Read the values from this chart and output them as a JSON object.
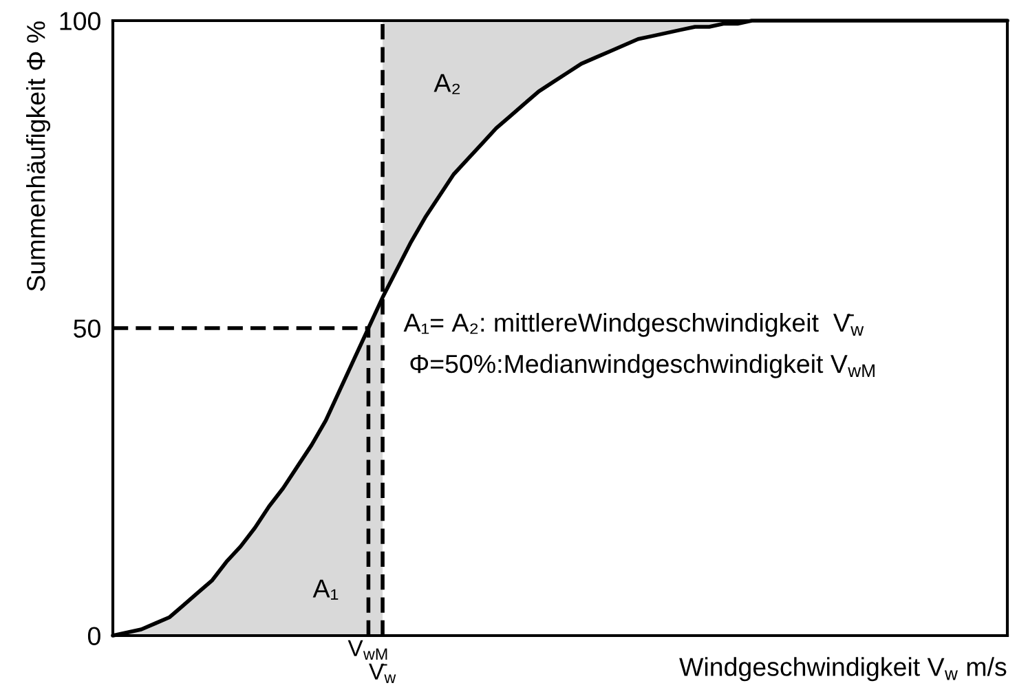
{
  "chart_data": {
    "type": "line",
    "xlabel": "Windgeschwindigkeit V$_{w}$ m/s",
    "ylabel": "Summenhäufigkeit Φ %",
    "categories": [
      null,
      null,
      null,
      null,
      null,
      null,
      null,
      null,
      null,
      null,
      null,
      null,
      null,
      null,
      null,
      null,
      null,
      null,
      "V$_{wM}$",
      "V̄$_{w}$",
      null,
      null,
      null,
      null,
      null,
      null,
      null,
      null,
      null,
      null,
      null,
      null,
      null,
      null,
      null,
      null,
      null,
      null,
      null,
      null,
      null,
      null,
      null,
      null,
      null,
      null,
      null,
      null,
      null,
      null,
      null,
      null,
      null,
      null,
      null,
      null,
      null,
      null,
      null,
      null,
      null,
      null,
      null,
      null
    ],
    "ylim": [
      0,
      100
    ],
    "yticks": [
      0,
      50,
      100
    ],
    "series": [
      {
        "name": "A₁",
        "type": "area",
        "color": "#d9d9d9",
        "values": [
          0,
          0.5,
          1,
          2,
          3,
          5,
          7,
          9,
          12,
          14.5,
          17.5,
          21,
          24,
          27.5,
          31,
          35,
          40,
          45,
          50,
          55,
          null,
          null,
          null,
          null,
          null,
          null,
          null,
          null,
          null,
          null,
          null,
          null,
          null,
          null,
          null,
          null,
          null,
          null,
          null,
          null,
          null,
          null,
          null,
          null,
          null,
          null,
          null,
          null,
          null,
          null,
          null,
          null,
          null,
          null,
          null,
          null,
          null,
          null,
          null,
          null,
          null,
          null,
          null,
          null
        ]
      },
      {
        "color": "#000000",
        "values": [
          0,
          0.5,
          1,
          2,
          3,
          5,
          7,
          9,
          12,
          14.5,
          17.5,
          21,
          24,
          27.5,
          31,
          35,
          40,
          45,
          50,
          55,
          59.5,
          64,
          68,
          71.5,
          75,
          77.5,
          80,
          82.5,
          84.5,
          86.5,
          88.5,
          90,
          91.5,
          93,
          94,
          95,
          96,
          97,
          97.5,
          98,
          98.5,
          99,
          99,
          99.5,
          99.5,
          100,
          100,
          100,
          100,
          100,
          100,
          100,
          100,
          100,
          100,
          100,
          100,
          100,
          100,
          100,
          100,
          100,
          100,
          100
        ],
        "lower": [
          null,
          null,
          null,
          null,
          null,
          null,
          null,
          null,
          null,
          null,
          null,
          null,
          null,
          null,
          null,
          null,
          null,
          null,
          null,
          55,
          59.5,
          64,
          68,
          71.5,
          75,
          77.5,
          80,
          82.5,
          84.5,
          86.5,
          88.5,
          90,
          91.5,
          93,
          94,
          95,
          96,
          97,
          97.5,
          98,
          98.5,
          99,
          99,
          99.5,
          99.5,
          100,
          null,
          null,
          null,
          null,
          null,
          null,
          null,
          null,
          null,
          null,
          null,
          null,
          null,
          null,
          null,
          null,
          null,
          null
        ],
        "upper": [
          null,
          null,
          null,
          null,
          null,
          null,
          null,
          null,
          null,
          null,
          null,
          null,
          null,
          null,
          null,
          null,
          null,
          null,
          null,
          100,
          100,
          100,
          100,
          100,
          100,
          100,
          100,
          100,
          100,
          100,
          100,
          100,
          100,
          100,
          100,
          100,
          100,
          100,
          100,
          100,
          100,
          100,
          100,
          100,
          100,
          100,
          null,
          null,
          null,
          null,
          null,
          null,
          null,
          null,
          null,
          null,
          null,
          null,
          null,
          null,
          null,
          null,
          null,
          null
        ]
      },
      {
        "type": "line",
        "color": "#000000",
        "line_style": "dashed",
        "values": [
          50,
          50,
          50,
          50,
          50,
          50,
          50,
          50,
          50,
          50,
          50,
          50,
          50,
          50,
          50,
          50,
          50,
          50,
          50,
          null,
          null,
          null,
          null,
          null,
          null,
          null,
          null,
          null,
          null,
          null,
          null,
          null,
          null,
          null,
          null,
          null,
          null,
          null,
          null,
          null,
          null,
          null,
          null,
          null,
          null,
          null,
          null,
          null,
          null,
          null,
          null,
          null,
          null,
          null,
          null,
          null,
          null,
          null,
          null,
          null,
          null,
          null,
          null,
          null
        ]
      },
      {
        "type": "line",
        "color": "#000000",
        "line_style": "dashed",
        "x": [
          "V$_{wM}$",
          "V$_{wM}$"
        ],
        "values": [
          0,
          50
        ]
      },
      {
        "type": "line",
        "color": "#000000",
        "line_style": "dashed",
        "x": [
          "V̄$_{w}$",
          "V̄$_{w}$"
        ],
        "values": [
          0,
          100
        ]
      }
    ],
    "annotations": [
      "A₂",
      "A₁= A₂: mittlereWindgeschwindigkeit  V̄$_{w}$",
      "Φ=50%:Medianwindgeschwindigkeit V$_{wM}$"
    ]
  }
}
